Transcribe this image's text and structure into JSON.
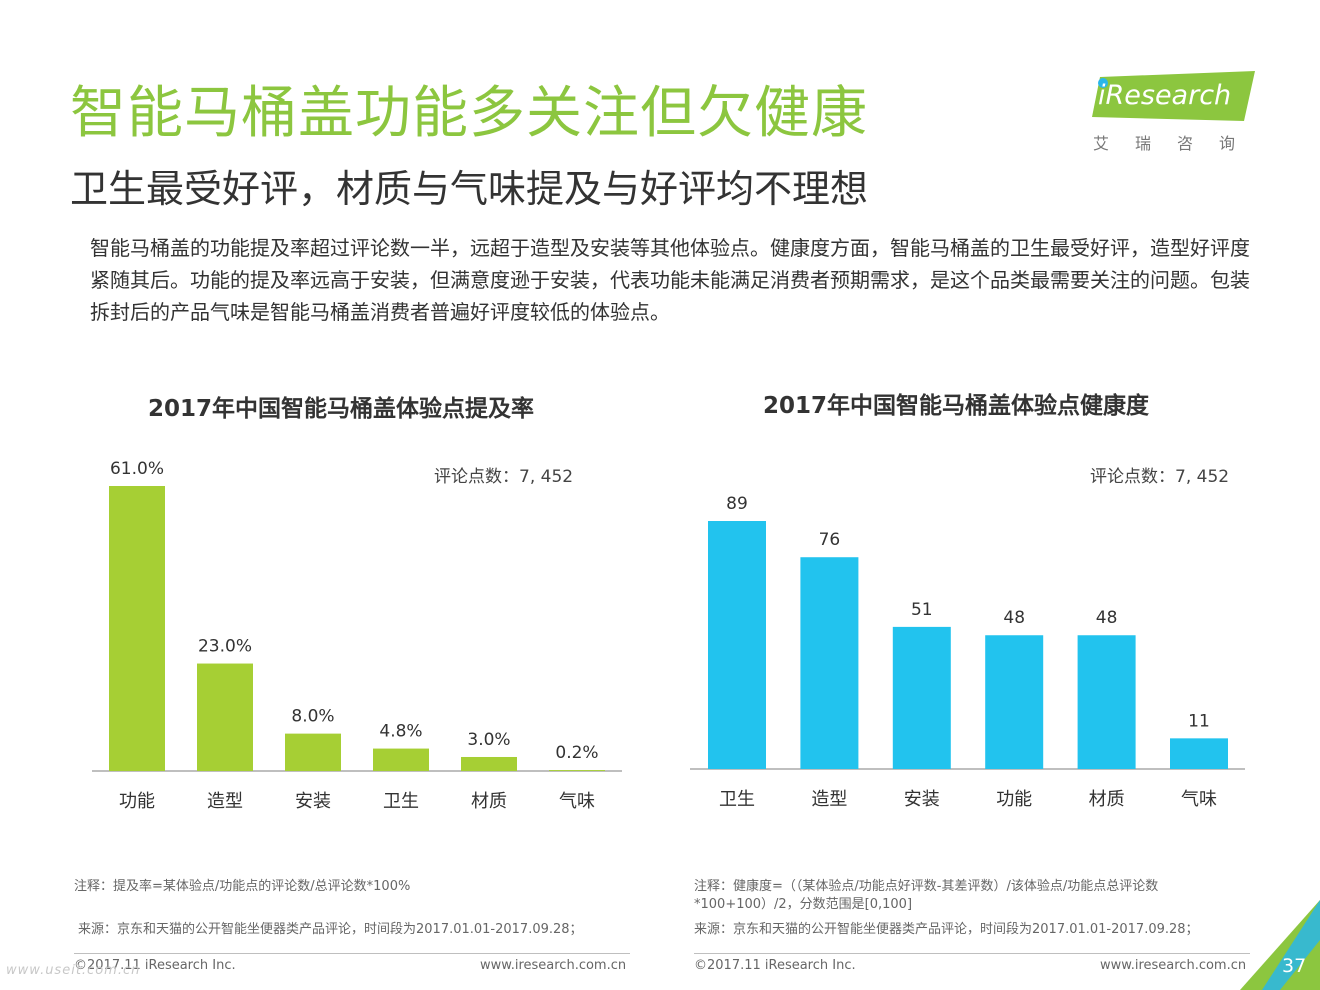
{
  "header": {
    "title": "智能马桶盖功能多关注但欠健康",
    "subtitle": "卫生最受好评，材质与气味提及与好评均不理想",
    "description": "智能马桶盖的功能提及率超过评论数一半，远超于造型及安装等其他体验点。健康度方面，智能马桶盖的卫生最受好评，造型好评度紧随其后。功能的提及率远高于安装，但满意度逊于安装，代表功能未能满足消费者预期需求，是这个品类最需要关注的问题。包装拆封后的产品气味是智能马桶盖消费者普遍好评度较低的体验点。"
  },
  "logo": {
    "brand": "iResearch",
    "chinese": "艾瑞咨询",
    "icon": "iresearch-logo"
  },
  "colors": {
    "title_green": "#8cc63f",
    "bar_green": "#a6cf34",
    "bar_blue": "#22c3ee",
    "corner_green": "#8cc63f",
    "corner_blue": "#29b6e8"
  },
  "chart_data": [
    {
      "type": "bar",
      "title": "2017年中国智能马桶盖体验点提及率",
      "annotation": "评论点数：7, 452",
      "categories": [
        "功能",
        "造型",
        "安装",
        "卫生",
        "材质",
        "气味"
      ],
      "values": [
        61.0,
        23.0,
        8.0,
        4.8,
        3.0,
        0.2
      ],
      "value_labels": [
        "61.0%",
        "23.0%",
        "8.0%",
        "4.8%",
        "3.0%",
        "0.2%"
      ],
      "unit": "%",
      "ylim": [
        0,
        61
      ],
      "grid": false,
      "color": "#a6cf34"
    },
    {
      "type": "bar",
      "title": "2017年中国智能马桶盖体验点健康度",
      "annotation": "评论点数：7, 452",
      "categories": [
        "卫生",
        "造型",
        "安装",
        "功能",
        "材质",
        "气味"
      ],
      "values": [
        89,
        76,
        51,
        48,
        48,
        11
      ],
      "value_labels": [
        "89",
        "76",
        "51",
        "48",
        "48",
        "11"
      ],
      "ylim": [
        0,
        89
      ],
      "grid": false,
      "color": "#22c3ee"
    }
  ],
  "notes": {
    "left_note": "注释：提及率=某体验点/功能点的评论数/总评论数*100%",
    "left_source": "来源：京东和天猫的公开智能坐便器类产品评论，时间段为2017.01.01-2017.09.28；",
    "right_note_1": "注释：健康度=（（某体验点/功能点好评数-其差评数）/该体验点/功能点总评论数",
    "right_note_2": "*100+100）/2，分数范围是[0,100]",
    "right_source": "来源：京东和天猫的公开智能坐便器类产品评论，时间段为2017.01.01-2017.09.28；"
  },
  "footer": {
    "copyright": "©2017.11 iResearch Inc.",
    "website": "www.iresearch.com.cn",
    "page_number": "37",
    "watermark": "www.useit.com.cn"
  }
}
